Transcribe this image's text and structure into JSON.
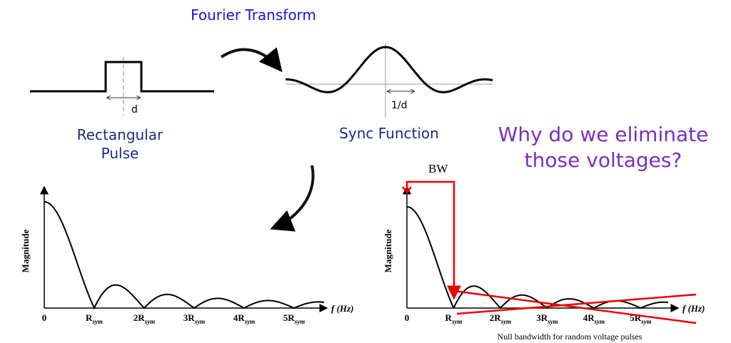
{
  "header": {
    "title": "Fourier Transform"
  },
  "pulse": {
    "width_label": "d",
    "caption": [
      "Rectangular",
      "Pulse"
    ]
  },
  "sinc": {
    "width_label": "1/d",
    "caption": "Sync Function"
  },
  "question": [
    "Why do we eliminate",
    "those voltages?"
  ],
  "left_plot": {
    "y_label": "Magnitude",
    "x_label": "f (Hz)",
    "x_ticks": [
      {
        "base": "0"
      },
      {
        "base": "R",
        "sub": "sym"
      },
      {
        "base": "2R",
        "sub": "sym"
      },
      {
        "base": "3R",
        "sub": "sym"
      },
      {
        "base": "4R",
        "sub": "sym"
      },
      {
        "base": "5R",
        "sub": "sym"
      }
    ]
  },
  "right_plot": {
    "y_label": "Magnitude",
    "x_label": "f (Hz)",
    "bw_label": "BW",
    "x_ticks": [
      {
        "base": "0"
      },
      {
        "base": "R",
        "sub": "sym"
      },
      {
        "base": "2R",
        "sub": "sym"
      },
      {
        "base": "3R",
        "sub": "sym"
      },
      {
        "base": "4R",
        "sub": "sym"
      },
      {
        "base": "5R",
        "sub": "sym"
      }
    ],
    "caption": "Null bandwidth for random voltage pulses"
  }
}
